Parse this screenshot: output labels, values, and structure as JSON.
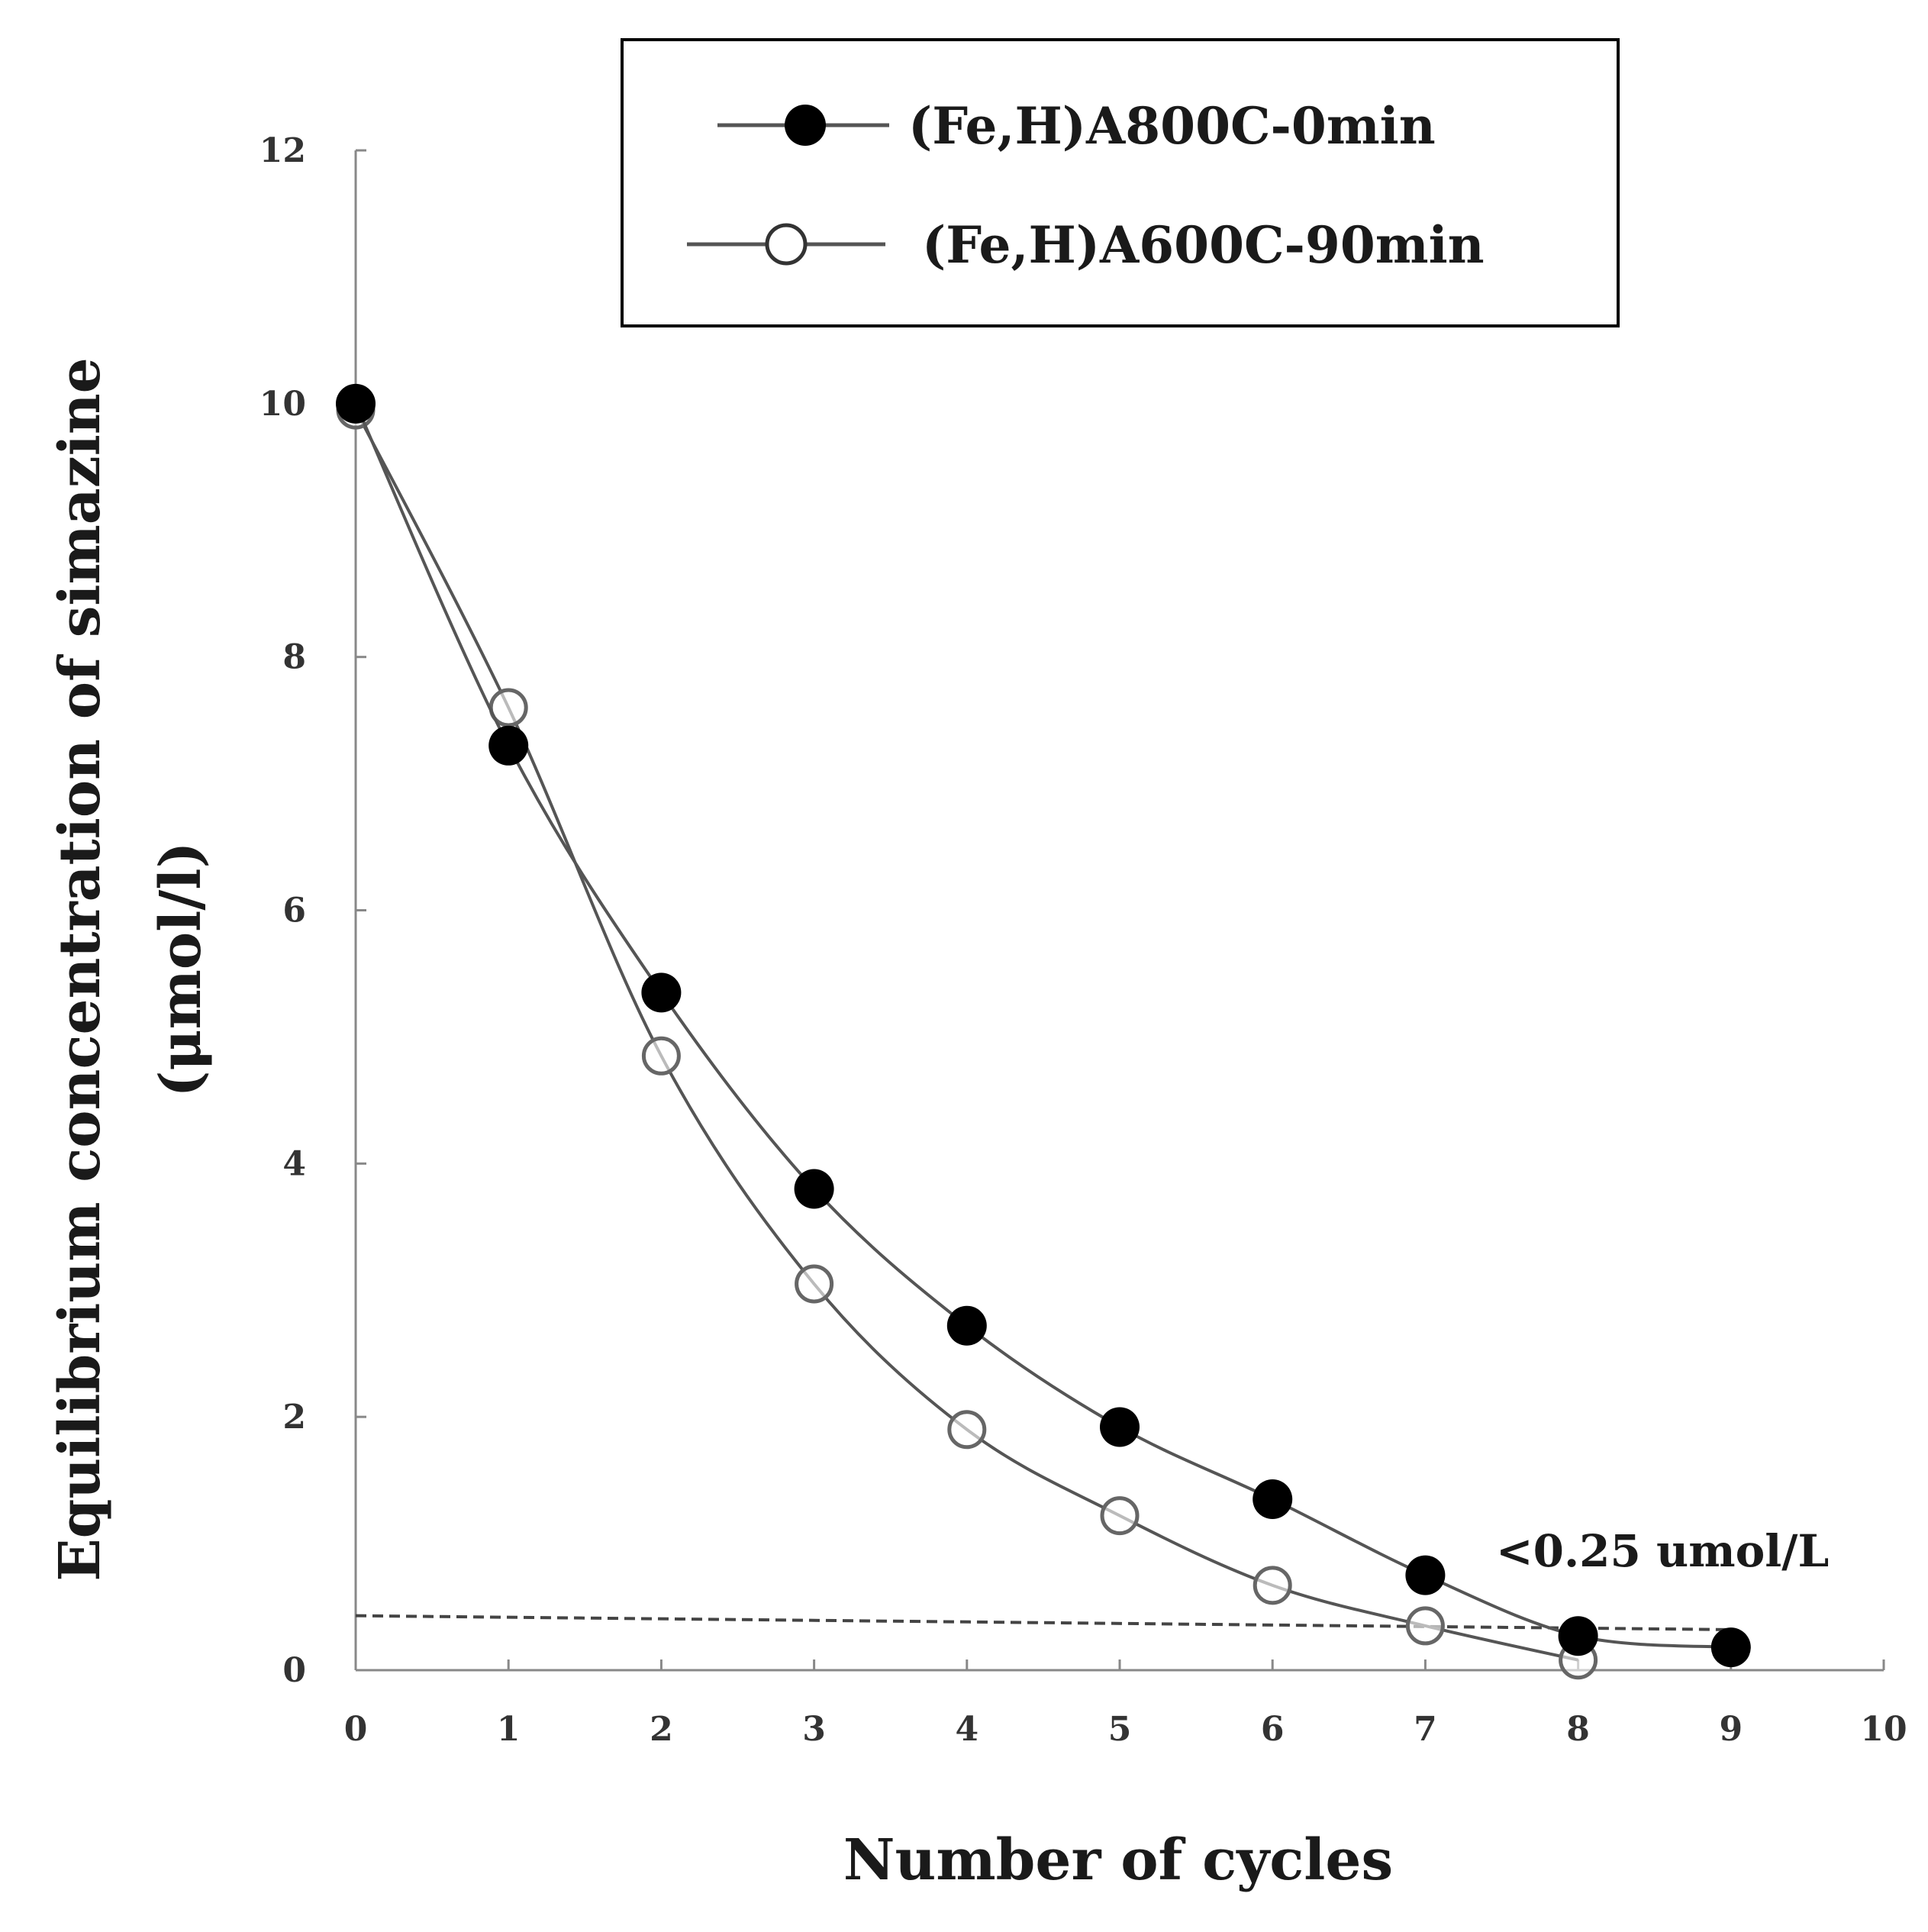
{
  "chart_data": {
    "type": "line",
    "xlabel": "Number of cycles",
    "ylabel_line1": "Equilibrium concentration of simazine",
    "ylabel_line2": "(μmol/l)",
    "xlim": [
      0,
      10
    ],
    "ylim": [
      0,
      12
    ],
    "x_ticks": [
      "0",
      "1",
      "2",
      "3",
      "4",
      "5",
      "6",
      "7",
      "8",
      "9",
      "10"
    ],
    "y_ticks": [
      "0",
      "2",
      "4",
      "6",
      "8",
      "10",
      "12"
    ],
    "grid": false,
    "legend_position": "top",
    "series": [
      {
        "name": "(Fe,H)A800C-0min",
        "marker": "filled-circle",
        "x": [
          0,
          1,
          2,
          3,
          4,
          5,
          6,
          7,
          8,
          9
        ],
        "values": [
          10.0,
          7.3,
          5.35,
          3.8,
          2.72,
          1.92,
          1.35,
          0.75,
          0.27,
          0.18
        ]
      },
      {
        "name": "(Fe,H)A600C-90min",
        "marker": "open-circle",
        "x": [
          0,
          1,
          2,
          3,
          4,
          5,
          6,
          7,
          8
        ],
        "values": [
          9.95,
          7.6,
          4.85,
          3.05,
          1.9,
          1.22,
          0.67,
          0.35,
          0.08
        ]
      }
    ],
    "reference_line": {
      "from": [
        0,
        0.43
      ],
      "to": [
        9,
        0.32
      ],
      "style": "dashed"
    },
    "annotation": "<0.25 umol/L",
    "colors": {
      "line": "#555555",
      "marker_filled": "#000000",
      "marker_open": "#666666",
      "axis": "#888888",
      "legend_border": "#000000"
    }
  }
}
